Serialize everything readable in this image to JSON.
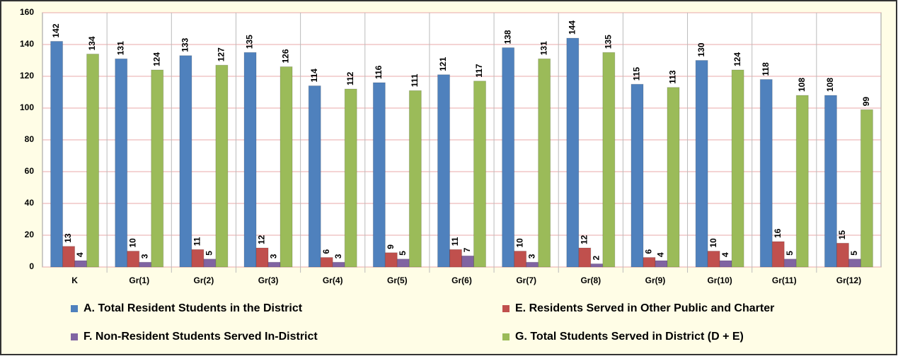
{
  "chart_data": {
    "type": "bar",
    "categories": [
      "K",
      "Gr(1)",
      "Gr(2)",
      "Gr(3)",
      "Gr(4)",
      "Gr(5)",
      "Gr(6)",
      "Gr(7)",
      "Gr(8)",
      "Gr(9)",
      "Gr(10)",
      "Gr(11)",
      "Gr(12)"
    ],
    "series": [
      {
        "name": "A.  Total Resident Students in the District",
        "color": "#4f81bd",
        "values": [
          142,
          131,
          133,
          135,
          114,
          116,
          121,
          138,
          144,
          115,
          130,
          118,
          108
        ]
      },
      {
        "name": "E.  Residents Served in Other Public and Charter",
        "color": "#c0504d",
        "values": [
          13,
          10,
          11,
          12,
          6,
          9,
          11,
          10,
          12,
          6,
          10,
          16,
          15
        ]
      },
      {
        "name": "F.  Non-Resident Students Served In-District",
        "color": "#8064a2",
        "values": [
          4,
          3,
          5,
          3,
          3,
          5,
          7,
          3,
          2,
          4,
          4,
          5,
          5
        ]
      },
      {
        "name": "G.  Total Students Served in District (D + E)",
        "color": "#9bbb59",
        "values": [
          134,
          124,
          127,
          126,
          112,
          111,
          117,
          131,
          135,
          113,
          124,
          108,
          99
        ]
      }
    ],
    "ylim": [
      0,
      160
    ],
    "yticks": [
      0,
      20,
      40,
      60,
      80,
      100,
      120,
      140,
      160
    ],
    "grid": true,
    "legend": "bottom"
  }
}
